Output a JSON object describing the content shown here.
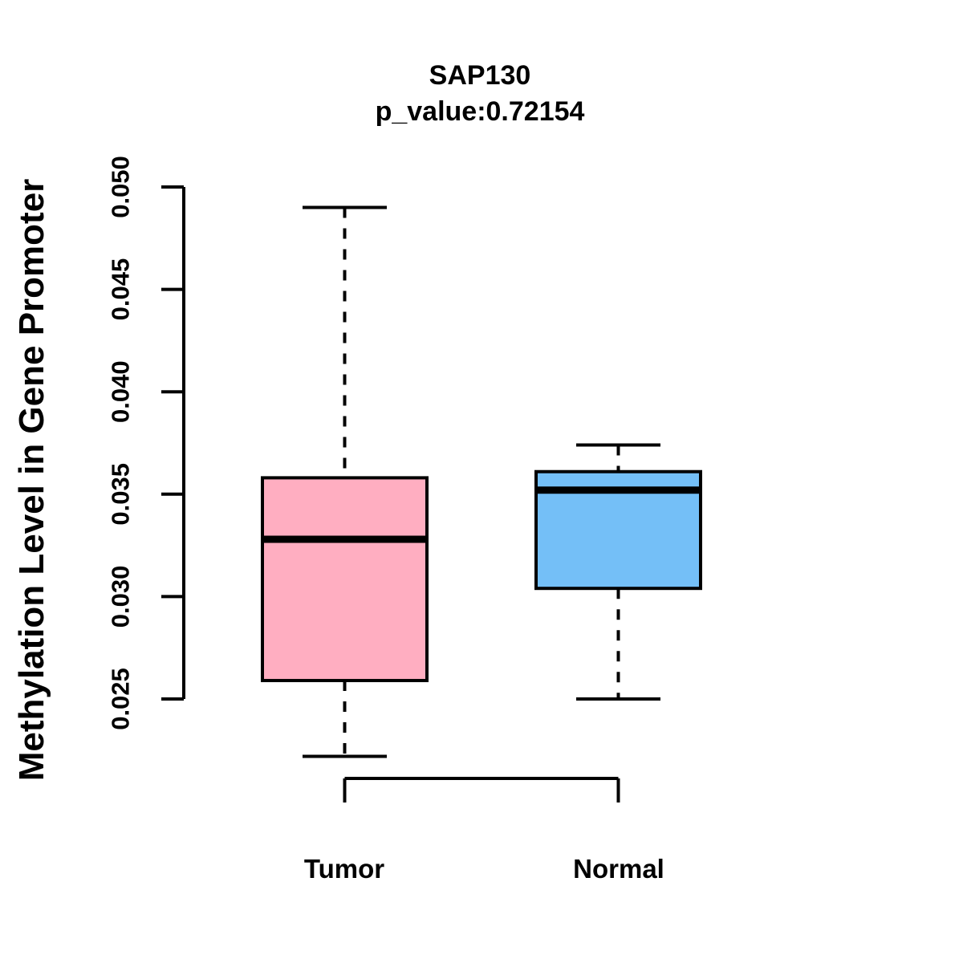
{
  "figure": {
    "background_color": "#ffffff",
    "text_color": "#000000"
  },
  "chart_data": {
    "type": "boxplot",
    "title": "SAP130",
    "subtitle": "p_value:0.72154",
    "ylabel": "Methylation Level in Gene Promoter",
    "xlabel": "",
    "categories": [
      "Tumor",
      "Normal"
    ],
    "series": [
      {
        "name": "Tumor",
        "fill_color": "#FFAEC1",
        "lower_whisker": 0.0222,
        "q1": 0.0259,
        "median": 0.0328,
        "q3": 0.0358,
        "upper_whisker": 0.049
      },
      {
        "name": "Normal",
        "fill_color": "#74BFF7",
        "lower_whisker": 0.025,
        "q1": 0.0304,
        "median": 0.0352,
        "q3": 0.0361,
        "upper_whisker": 0.0374
      }
    ],
    "y_axis": {
      "range": [
        0.025,
        0.05
      ],
      "ticks": [
        0.025,
        0.03,
        0.035,
        0.04,
        0.045,
        0.05
      ],
      "tick_labels": [
        "0.025",
        "0.030",
        "0.035",
        "0.040",
        "0.045",
        "0.050"
      ]
    },
    "grid": false,
    "legend_position": "none",
    "comparison_bracket": {
      "between": [
        "Tumor",
        "Normal"
      ],
      "shape": "top-horizontal-with-down-legs"
    },
    "style": {
      "box_border_color": "#000000",
      "median_color": "#000000",
      "whisker_style": "dashed"
    }
  }
}
